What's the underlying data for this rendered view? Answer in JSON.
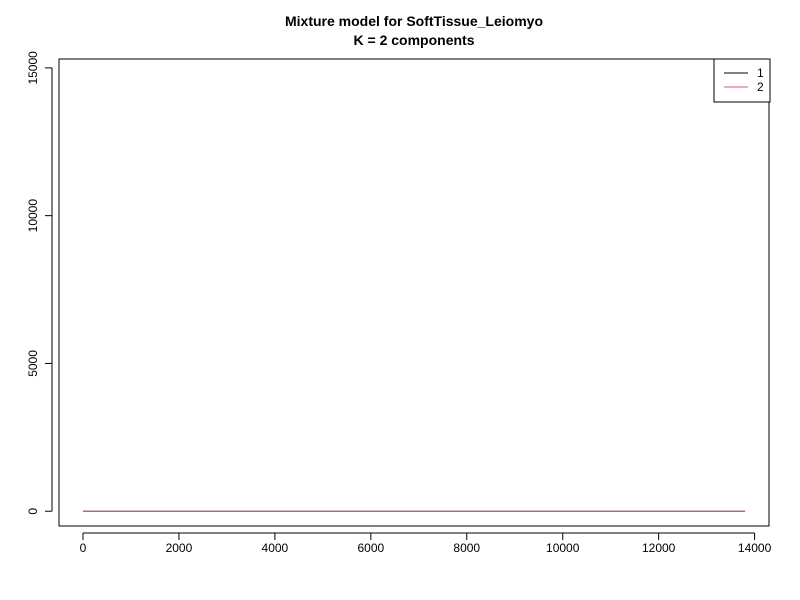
{
  "chart_data": {
    "type": "line",
    "title": "Mixture model for SoftTissue_Leiomyo",
    "subtitle": "K = 2 components",
    "xlabel": "",
    "ylabel": "",
    "xlim": [
      -500,
      14300
    ],
    "ylim": [
      -500,
      15300
    ],
    "x_ticks": [
      0,
      2000,
      4000,
      6000,
      8000,
      10000,
      12000,
      14000
    ],
    "y_ticks": [
      0,
      5000,
      10000,
      15000
    ],
    "legend_position": "top-right",
    "grid": false,
    "series": [
      {
        "name": "1",
        "color": "#000000",
        "x": [
          0,
          13800
        ],
        "y": [
          0,
          0
        ]
      },
      {
        "name": "2",
        "color": "#DF536B",
        "x": [
          0,
          13800
        ],
        "y": [
          0,
          0
        ]
      }
    ]
  }
}
